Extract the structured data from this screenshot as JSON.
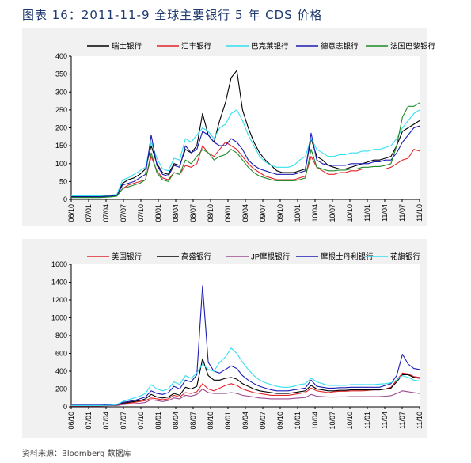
{
  "title": "图表 16：2011-11-9 全球主要银行 5 年 CDS 价格",
  "source": "资料来源：Bloomberg 数据库",
  "chart_data": [
    {
      "type": "line",
      "title": "",
      "xlabel": "",
      "ylabel": "",
      "ylim": [
        0,
        400
      ],
      "yticks": [
        0,
        50,
        100,
        150,
        200,
        250,
        300,
        350,
        400
      ],
      "xtick_labels": [
        "06/10",
        "07/01",
        "07/04",
        "07/07",
        "07/10",
        "08/01",
        "08/04",
        "08/07",
        "08/10",
        "09/01",
        "09/04",
        "09/07",
        "09/10",
        "10/01",
        "10/04",
        "10/07",
        "10/10",
        "11/01",
        "11/04",
        "11/07",
        "11/10"
      ],
      "x": [
        "06/10",
        "06/11",
        "06/12",
        "07/01",
        "07/02",
        "07/03",
        "07/04",
        "07/05",
        "07/06",
        "07/07",
        "07/08",
        "07/09",
        "07/10",
        "07/11",
        "07/12",
        "08/01",
        "08/02",
        "08/03",
        "08/04",
        "08/05",
        "08/06",
        "08/07",
        "08/08",
        "08/09",
        "08/10",
        "08/11",
        "08/12",
        "09/01",
        "09/02",
        "09/03",
        "09/04",
        "09/05",
        "09/06",
        "09/07",
        "09/08",
        "09/09",
        "09/10",
        "09/11",
        "09/12",
        "10/01",
        "10/02",
        "10/03",
        "10/04",
        "10/05",
        "10/06",
        "10/07",
        "10/08",
        "10/09",
        "10/10",
        "10/11",
        "10/12",
        "11/01",
        "11/02",
        "11/03",
        "11/04",
        "11/05",
        "11/06",
        "11/07",
        "11/08",
        "11/09",
        "11/10",
        "11/11"
      ],
      "legend_position": "top",
      "grid": false,
      "series": [
        {
          "name": "瑞士银行",
          "color": "#000000",
          "values": [
            8,
            8,
            8,
            8,
            8,
            8,
            9,
            10,
            12,
            45,
            55,
            60,
            70,
            85,
            150,
            100,
            75,
            70,
            100,
            95,
            140,
            130,
            150,
            240,
            180,
            160,
            220,
            270,
            340,
            360,
            250,
            200,
            160,
            130,
            110,
            95,
            80,
            75,
            75,
            75,
            80,
            85,
            170,
            120,
            110,
            95,
            90,
            85,
            85,
            90,
            95,
            100,
            105,
            110,
            110,
            115,
            120,
            150,
            190,
            200,
            210,
            220
          ]
        },
        {
          "name": "汇丰银行",
          "color": "#e3242b",
          "values": [
            6,
            6,
            6,
            6,
            6,
            6,
            7,
            8,
            10,
            30,
            40,
            45,
            50,
            55,
            120,
            80,
            60,
            55,
            75,
            70,
            95,
            90,
            100,
            150,
            130,
            120,
            140,
            160,
            150,
            140,
            120,
            100,
            85,
            75,
            65,
            60,
            55,
            55,
            55,
            55,
            60,
            65,
            120,
            90,
            80,
            70,
            70,
            75,
            75,
            80,
            80,
            85,
            85,
            85,
            85,
            85,
            90,
            100,
            110,
            115,
            140,
            135
          ]
        },
        {
          "name": "巴克莱银行",
          "color": "#33e0ef",
          "values": [
            10,
            10,
            10,
            10,
            10,
            10,
            11,
            12,
            14,
            55,
            60,
            70,
            80,
            90,
            160,
            115,
            85,
            80,
            115,
            110,
            170,
            160,
            180,
            200,
            190,
            170,
            200,
            210,
            240,
            250,
            220,
            180,
            150,
            120,
            105,
            95,
            90,
            90,
            90,
            95,
            110,
            120,
            170,
            140,
            130,
            120,
            120,
            125,
            125,
            130,
            130,
            135,
            135,
            140,
            140,
            145,
            150,
            170,
            200,
            220,
            240,
            250
          ]
        },
        {
          "name": "德意志银行",
          "color": "#1c1cb6",
          "values": [
            7,
            7,
            7,
            7,
            7,
            7,
            8,
            9,
            11,
            40,
            45,
            50,
            60,
            70,
            180,
            95,
            70,
            65,
            95,
            90,
            150,
            130,
            140,
            190,
            180,
            160,
            150,
            150,
            170,
            160,
            140,
            110,
            95,
            85,
            80,
            75,
            70,
            70,
            70,
            70,
            75,
            80,
            185,
            110,
            100,
            95,
            95,
            95,
            95,
            100,
            100,
            100,
            100,
            105,
            105,
            110,
            110,
            130,
            160,
            180,
            200,
            205
          ]
        },
        {
          "name": "法国巴黎银行",
          "color": "#1e8a28",
          "values": [
            5,
            5,
            5,
            5,
            5,
            5,
            6,
            7,
            9,
            30,
            35,
            40,
            45,
            55,
            130,
            75,
            55,
            50,
            75,
            70,
            110,
            100,
            120,
            140,
            130,
            110,
            120,
            125,
            140,
            130,
            110,
            90,
            75,
            65,
            60,
            55,
            52,
            52,
            52,
            52,
            55,
            60,
            140,
            90,
            85,
            80,
            80,
            82,
            82,
            85,
            85,
            90,
            90,
            92,
            92,
            95,
            100,
            150,
            230,
            260,
            260,
            270
          ]
        }
      ]
    },
    {
      "type": "line",
      "title": "",
      "xlabel": "",
      "ylabel": "",
      "ylim": [
        0,
        1600
      ],
      "yticks": [
        0,
        200,
        400,
        600,
        800,
        1000,
        1200,
        1400,
        1600
      ],
      "xtick_labels": [
        "06/10",
        "07/01",
        "07/04",
        "07/07",
        "07/10",
        "08/01",
        "08/04",
        "08/07",
        "08/10",
        "09/01",
        "09/04",
        "09/07",
        "09/10",
        "10/01",
        "10/04",
        "10/07",
        "10/10",
        "11/01",
        "11/04",
        "11/07",
        "11/10"
      ],
      "x": [
        "06/10",
        "06/11",
        "06/12",
        "07/01",
        "07/02",
        "07/03",
        "07/04",
        "07/05",
        "07/06",
        "07/07",
        "07/08",
        "07/09",
        "07/10",
        "07/11",
        "07/12",
        "08/01",
        "08/02",
        "08/03",
        "08/04",
        "08/05",
        "08/06",
        "08/07",
        "08/08",
        "08/09",
        "08/10",
        "08/11",
        "08/12",
        "09/01",
        "09/02",
        "09/03",
        "09/04",
        "09/05",
        "09/06",
        "09/07",
        "09/08",
        "09/09",
        "09/10",
        "09/11",
        "09/12",
        "10/01",
        "10/02",
        "10/03",
        "10/04",
        "10/05",
        "10/06",
        "10/07",
        "10/08",
        "10/09",
        "10/10",
        "10/11",
        "10/12",
        "11/01",
        "11/02",
        "11/03",
        "11/04",
        "11/05",
        "11/06",
        "11/07",
        "11/08",
        "11/09",
        "11/10",
        "11/11"
      ],
      "legend_position": "top",
      "grid": false,
      "series": [
        {
          "name": "美国银行",
          "color": "#e3242b",
          "values": [
            10,
            10,
            10,
            10,
            10,
            10,
            12,
            14,
            16,
            30,
            40,
            50,
            60,
            70,
            100,
            90,
            80,
            90,
            130,
            110,
            160,
            150,
            170,
            260,
            200,
            180,
            210,
            240,
            260,
            240,
            200,
            180,
            160,
            150,
            140,
            130,
            130,
            130,
            130,
            140,
            150,
            160,
            210,
            180,
            170,
            160,
            170,
            175,
            175,
            180,
            180,
            180,
            185,
            190,
            190,
            200,
            220,
            300,
            380,
            370,
            340,
            330
          ]
        },
        {
          "name": "高盛银行",
          "color": "#000000",
          "values": [
            15,
            15,
            15,
            15,
            15,
            15,
            16,
            18,
            20,
            40,
            50,
            60,
            70,
            90,
            140,
            110,
            100,
            110,
            150,
            130,
            220,
            200,
            230,
            540,
            350,
            300,
            300,
            320,
            330,
            310,
            260,
            230,
            200,
            180,
            170,
            160,
            150,
            150,
            150,
            160,
            170,
            180,
            240,
            200,
            190,
            180,
            180,
            185,
            185,
            190,
            190,
            190,
            190,
            190,
            190,
            200,
            210,
            280,
            360,
            360,
            330,
            320
          ]
        },
        {
          "name": "JP摩根银行",
          "color": "#9b4a8f",
          "values": [
            12,
            12,
            12,
            12,
            12,
            12,
            13,
            14,
            15,
            25,
            30,
            35,
            40,
            50,
            80,
            70,
            60,
            70,
            100,
            90,
            130,
            120,
            140,
            200,
            160,
            150,
            150,
            150,
            160,
            150,
            130,
            120,
            110,
            100,
            95,
            90,
            90,
            90,
            90,
            95,
            100,
            105,
            140,
            120,
            115,
            110,
            110,
            112,
            112,
            115,
            115,
            115,
            115,
            115,
            115,
            120,
            125,
            150,
            180,
            170,
            160,
            150
          ]
        },
        {
          "name": "摩根士丹利银行",
          "color": "#1c1cb6",
          "values": [
            20,
            20,
            20,
            20,
            20,
            20,
            22,
            25,
            28,
            50,
            60,
            70,
            90,
            110,
            180,
            150,
            140,
            160,
            230,
            200,
            300,
            280,
            360,
            1360,
            500,
            400,
            380,
            420,
            460,
            430,
            350,
            300,
            260,
            230,
            210,
            190,
            180,
            180,
            180,
            190,
            200,
            210,
            300,
            230,
            220,
            210,
            210,
            215,
            215,
            220,
            220,
            220,
            220,
            220,
            220,
            240,
            260,
            350,
            590,
            480,
            430,
            420
          ]
        },
        {
          "name": "花旗银行",
          "color": "#33e0ef",
          "values": [
            14,
            14,
            14,
            14,
            14,
            14,
            16,
            20,
            25,
            60,
            80,
            100,
            120,
            150,
            250,
            200,
            180,
            200,
            280,
            250,
            350,
            320,
            380,
            480,
            420,
            400,
            500,
            560,
            660,
            600,
            500,
            420,
            350,
            300,
            270,
            250,
            230,
            220,
            220,
            230,
            250,
            260,
            320,
            280,
            260,
            240,
            240,
            240,
            240,
            250,
            250,
            250,
            250,
            250,
            255,
            260,
            270,
            300,
            350,
            330,
            300,
            290
          ]
        }
      ]
    }
  ]
}
